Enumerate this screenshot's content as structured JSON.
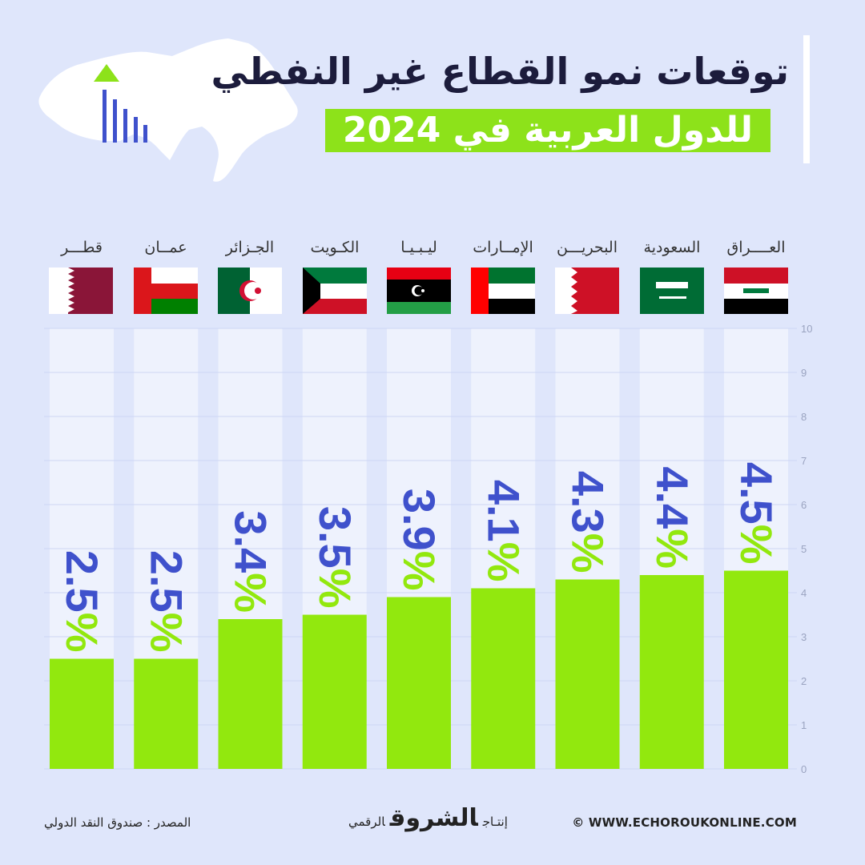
{
  "header": {
    "title_line1": "توقعات نمو القطاع غير النفطي",
    "title_line2": "للدول العربية في 2024"
  },
  "footer": {
    "source": "المصدر : صندوق النقد الدولي",
    "brand_prefix": "إنتـاج",
    "brand_name": "الشروق",
    "brand_suffix": "الرقمي",
    "website": "© WWW.ECHOROUKONLINE.COM"
  },
  "colors": {
    "bar": "#92e80e",
    "label": "#3f51cc",
    "column_bg": "#eef2fd",
    "page_bg": "#dfe6fb",
    "title_box": "#8de21a"
  },
  "chart_data": {
    "type": "bar",
    "categories": [
      "العــــراق",
      "السعودية",
      "البحريـــن",
      "الإمــارات",
      "ليـبـيـا",
      "الكـويت",
      "الجـزائر",
      "عمــان",
      "قطـــر"
    ],
    "values": [
      4.5,
      4.4,
      4.3,
      4.1,
      3.9,
      3.5,
      3.4,
      2.5,
      2.5
    ],
    "value_labels": [
      "4.5%",
      "4.4%",
      "4.3%",
      "4.1%",
      "3.9%",
      "3.5%",
      "3.4%",
      "2.5%",
      "2.5%"
    ],
    "flags": [
      "iraq-flag-icon",
      "saudi-flag-icon",
      "bahrain-flag-icon",
      "uae-flag-icon",
      "libya-flag-icon",
      "kuwait-flag-icon",
      "algeria-flag-icon",
      "oman-flag-icon",
      "qatar-flag-icon"
    ],
    "ylim": [
      0,
      10
    ],
    "yticks": [
      "0",
      "1",
      "2",
      "3",
      "4",
      "5",
      "6",
      "7",
      "8",
      "9",
      "10"
    ],
    "axis_position": "right",
    "grid": true
  }
}
